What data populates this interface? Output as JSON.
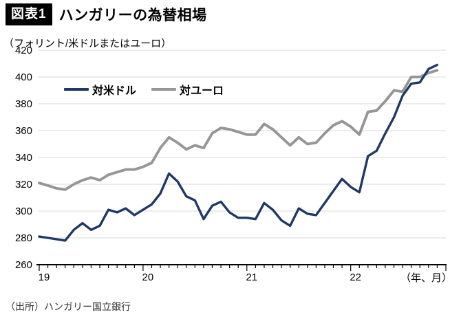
{
  "figure_label": "図表1",
  "title": "ハンガリーの為替相場",
  "y_axis_unit": "（フォリント/米ドルまたはユーロ）",
  "x_axis_unit": "（年、月）",
  "source": "（出所）ハンガリー国立銀行",
  "colors": {
    "usd_line": "#1f3864",
    "eur_line": "#969696",
    "gridline": "#d9d9d9",
    "axis": "#000000",
    "badge_bg": "#000000",
    "badge_text": "#ffffff"
  },
  "chart_data": {
    "type": "line",
    "title": "ハンガリーの為替相場",
    "ylabel": "フォリント/米ドルまたはユーロ",
    "xlabel": "年、月",
    "ylim": [
      260,
      420
    ],
    "ytick_interval": 20,
    "y_ticks": [
      420,
      400,
      380,
      360,
      340,
      320,
      300,
      280,
      260
    ],
    "x_tick_labels": [
      "19",
      "20",
      "21",
      "22"
    ],
    "x_start": "2019-01",
    "x_end": "2022-11",
    "x_minor_tick_count": 48,
    "grid": true,
    "legend_position": "inside-top-left",
    "series": [
      {
        "id": "usd",
        "name": "対米ドル",
        "color": "#1f3864",
        "values": [
          281,
          280,
          279,
          278,
          286,
          291,
          286,
          289,
          301,
          299,
          302,
          297,
          301,
          305,
          313,
          328,
          322,
          311,
          308,
          294,
          304,
          307,
          299,
          295,
          295,
          294,
          306,
          301,
          293,
          289,
          302,
          298,
          297,
          306,
          315,
          324,
          318,
          314,
          341,
          345,
          358,
          370,
          386,
          395,
          396,
          406,
          409
        ]
      },
      {
        "id": "eur",
        "name": "対ユーロ",
        "color": "#969696",
        "values": [
          321,
          319,
          317,
          316,
          320,
          323,
          325,
          323,
          327,
          329,
          331,
          331,
          333,
          336,
          347,
          355,
          351,
          346,
          349,
          347,
          358,
          362,
          361,
          359,
          357,
          357,
          365,
          361,
          355,
          349,
          355,
          350,
          351,
          358,
          364,
          367,
          363,
          357,
          374,
          375,
          382,
          390,
          389,
          400,
          400,
          403,
          405
        ]
      }
    ]
  }
}
